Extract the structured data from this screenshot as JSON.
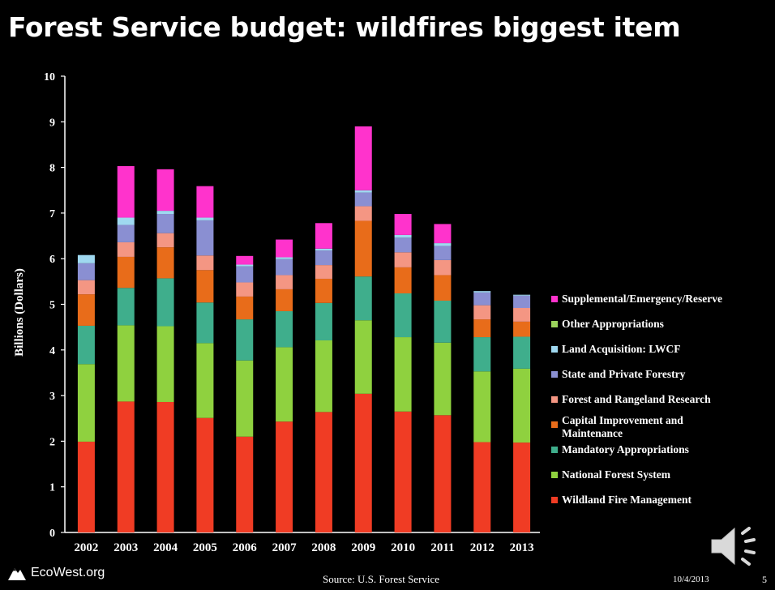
{
  "slide": {
    "title": "Forest Service budget: wildfires biggest item",
    "source": "Source: U.S. Forest Service",
    "logo_text": "EcoWest.org",
    "date": "10/4/2013",
    "page_number": "5",
    "audio_icon": "speaker-icon"
  },
  "chart_data": {
    "type": "bar",
    "stacked": true,
    "ylabel": "Billions (Dollars)",
    "xlabel": "",
    "ylim": [
      0,
      10
    ],
    "yticks": [
      0,
      1,
      2,
      3,
      4,
      5,
      6,
      7,
      8,
      9,
      10
    ],
    "grid": false,
    "legend_position": "right",
    "categories": [
      "2002",
      "2003",
      "2004",
      "2005",
      "2006",
      "2007",
      "2008",
      "2009",
      "2010",
      "2011",
      "2012",
      "2013"
    ],
    "series": [
      {
        "name": "Wildland Fire Management",
        "color": "#f03c24",
        "values": [
          1.99,
          2.87,
          2.86,
          2.51,
          2.1,
          2.43,
          2.64,
          3.04,
          2.65,
          2.57,
          1.98,
          1.97
        ]
      },
      {
        "name": "National Forest System",
        "color": "#8fd13f",
        "values": [
          1.7,
          1.67,
          1.66,
          1.64,
          1.67,
          1.63,
          1.57,
          1.61,
          1.63,
          1.59,
          1.55,
          1.62
        ]
      },
      {
        "name": "Mandatory Appropriations",
        "color": "#3fae8c",
        "values": [
          0.84,
          0.82,
          1.05,
          0.89,
          0.9,
          0.79,
          0.82,
          0.96,
          0.96,
          0.92,
          0.75,
          0.7
        ]
      },
      {
        "name": "Capital Improvement and Maintenance",
        "color": "#e86c1a",
        "values": [
          0.69,
          0.68,
          0.68,
          0.71,
          0.5,
          0.48,
          0.53,
          1.22,
          0.57,
          0.56,
          0.39,
          0.33
        ]
      },
      {
        "name": "Forest and Rangeland Research",
        "color": "#f49683",
        "values": [
          0.31,
          0.32,
          0.31,
          0.32,
          0.31,
          0.31,
          0.3,
          0.32,
          0.33,
          0.33,
          0.31,
          0.3
        ]
      },
      {
        "name": "State and Private Forestry",
        "color": "#8a8fd2",
        "values": [
          0.37,
          0.38,
          0.42,
          0.77,
          0.35,
          0.35,
          0.32,
          0.3,
          0.32,
          0.31,
          0.28,
          0.27
        ]
      },
      {
        "name": "Land Acquisition: LWCF",
        "color": "#9fd8f0",
        "values": [
          0.18,
          0.16,
          0.07,
          0.06,
          0.04,
          0.04,
          0.04,
          0.05,
          0.06,
          0.06,
          0.03,
          0.02
        ]
      },
      {
        "name": "Other Appropriations",
        "color": "#9bd35c",
        "values": [
          0,
          0,
          0,
          0,
          0,
          0,
          0,
          0,
          0,
          0,
          0,
          0
        ]
      },
      {
        "name": "Supplemental/Emergency/Reserve",
        "color": "#ff33cc",
        "values": [
          0,
          1.13,
          0.91,
          0.69,
          0.19,
          0.39,
          0.56,
          1.4,
          0.46,
          0.42,
          0,
          0
        ]
      }
    ]
  }
}
